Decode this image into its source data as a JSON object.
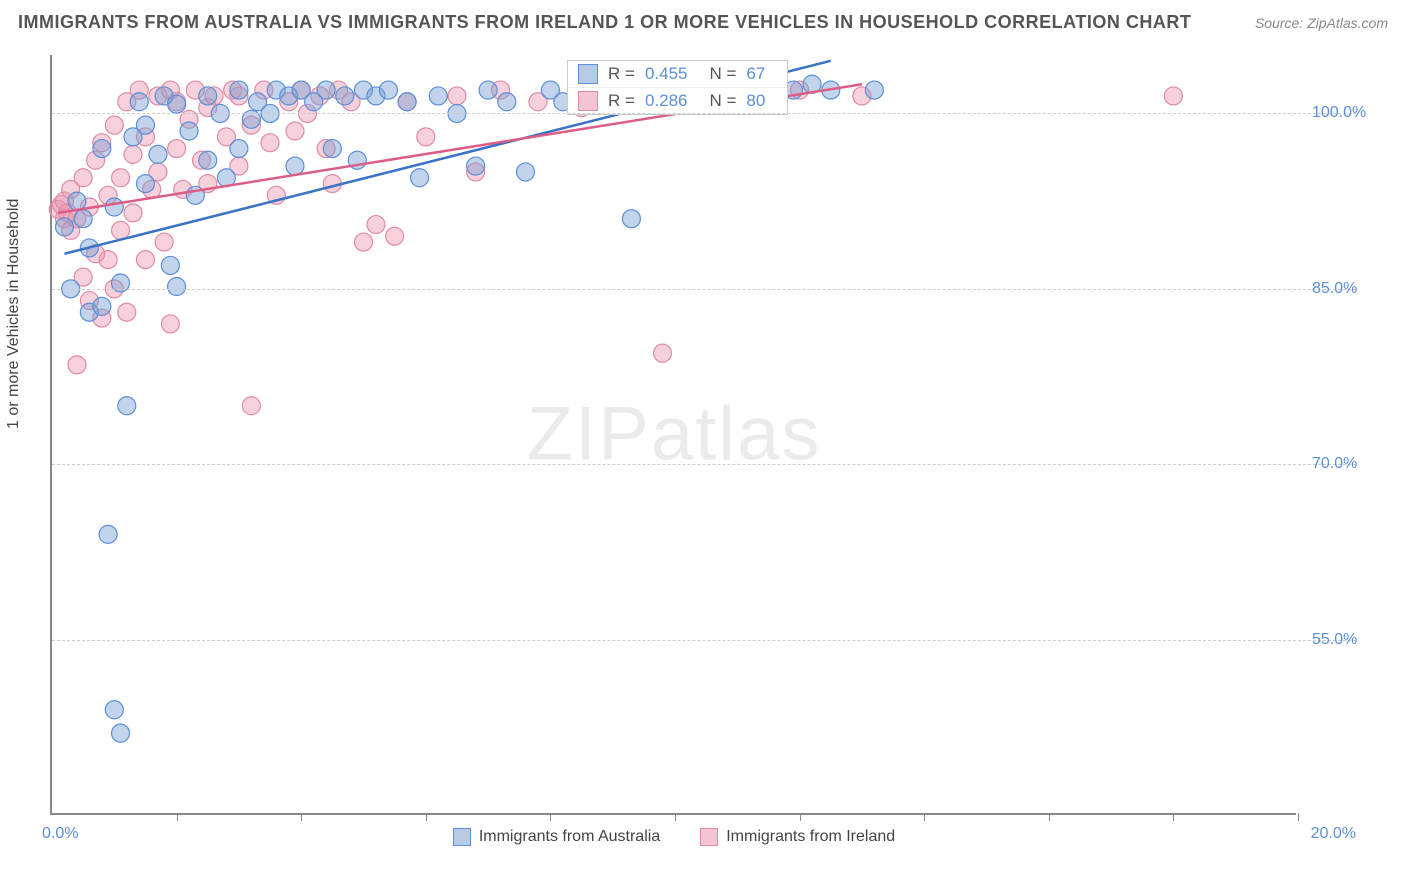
{
  "title": "IMMIGRANTS FROM AUSTRALIA VS IMMIGRANTS FROM IRELAND 1 OR MORE VEHICLES IN HOUSEHOLD CORRELATION CHART",
  "source": "Source: ZipAtlas.com",
  "watermark_bold": "ZIP",
  "watermark_thin": "atlas",
  "y_axis_label": "1 or more Vehicles in Household",
  "chart": {
    "type": "scatter",
    "xlim": [
      0,
      20
    ],
    "ylim": [
      40,
      105
    ],
    "x_ticks": [
      0,
      2,
      4,
      6,
      8,
      10,
      12,
      14,
      16,
      18,
      20
    ],
    "y_gridlines": [
      55.0,
      70.0,
      85.0,
      100.0
    ],
    "y_tick_labels": [
      "55.0%",
      "70.0%",
      "85.0%",
      "100.0%"
    ],
    "x_min_label": "0.0%",
    "x_max_label": "20.0%",
    "background_color": "#ffffff",
    "grid_color": "#cccccc",
    "axis_color": "#888888",
    "series": [
      {
        "name": "Immigrants from Australia",
        "marker_color": "rgba(120,160,210,0.45)",
        "marker_stroke": "#5b8fd6",
        "line_color": "#3a72c4",
        "marker_radius": 9,
        "R": "0.455",
        "N": "67",
        "trend": {
          "x1": 0.2,
          "y1": 88.0,
          "x2": 12.5,
          "y2": 104.5
        },
        "points": [
          [
            0.2,
            90.3
          ],
          [
            0.3,
            85.0
          ],
          [
            0.4,
            92.5
          ],
          [
            0.5,
            91.0
          ],
          [
            0.6,
            83.0
          ],
          [
            0.6,
            88.5
          ],
          [
            0.8,
            97.0
          ],
          [
            0.8,
            83.5
          ],
          [
            0.9,
            64.0
          ],
          [
            1.0,
            92.0
          ],
          [
            1.0,
            49.0
          ],
          [
            1.1,
            47.0
          ],
          [
            1.1,
            85.5
          ],
          [
            1.2,
            75.0
          ],
          [
            1.3,
            98.0
          ],
          [
            1.4,
            101.0
          ],
          [
            1.5,
            99.0
          ],
          [
            1.5,
            94.0
          ],
          [
            1.7,
            96.5
          ],
          [
            1.8,
            101.5
          ],
          [
            1.9,
            87.0
          ],
          [
            2.0,
            85.2
          ],
          [
            2.0,
            100.8
          ],
          [
            2.2,
            98.5
          ],
          [
            2.3,
            93.0
          ],
          [
            2.5,
            101.5
          ],
          [
            2.5,
            96.0
          ],
          [
            2.7,
            100.0
          ],
          [
            2.8,
            94.5
          ],
          [
            3.0,
            102.0
          ],
          [
            3.0,
            97.0
          ],
          [
            3.2,
            99.5
          ],
          [
            3.3,
            101.0
          ],
          [
            3.5,
            100.0
          ],
          [
            3.6,
            102.0
          ],
          [
            3.8,
            101.5
          ],
          [
            3.9,
            95.5
          ],
          [
            4.0,
            102.0
          ],
          [
            4.2,
            101.0
          ],
          [
            4.4,
            102.0
          ],
          [
            4.5,
            97.0
          ],
          [
            4.7,
            101.5
          ],
          [
            4.9,
            96.0
          ],
          [
            5.0,
            102.0
          ],
          [
            5.2,
            101.5
          ],
          [
            5.4,
            102.0
          ],
          [
            5.7,
            101.0
          ],
          [
            5.9,
            94.5
          ],
          [
            6.2,
            101.5
          ],
          [
            6.5,
            100.0
          ],
          [
            6.8,
            95.5
          ],
          [
            7.0,
            102.0
          ],
          [
            7.3,
            101.0
          ],
          [
            7.6,
            95.0
          ],
          [
            8.0,
            102.0
          ],
          [
            8.2,
            101.0
          ],
          [
            8.8,
            101.5
          ],
          [
            9.2,
            102.0
          ],
          [
            9.3,
            91.0
          ],
          [
            10.3,
            101.0
          ],
          [
            10.8,
            101.5
          ],
          [
            11.3,
            103.0
          ],
          [
            11.6,
            101.5
          ],
          [
            11.9,
            102.0
          ],
          [
            12.2,
            102.5
          ],
          [
            12.5,
            102.0
          ],
          [
            13.2,
            102.0
          ]
        ]
      },
      {
        "name": "Immigrants from Ireland",
        "marker_color": "rgba(235,150,175,0.45)",
        "marker_stroke": "#e08ba5",
        "line_color": "#dc5d86",
        "marker_radius": 9,
        "R": "0.286",
        "N": "80",
        "trend": {
          "x1": 0.1,
          "y1": 91.5,
          "x2": 13.0,
          "y2": 102.5
        },
        "points": [
          [
            0.1,
            91.8
          ],
          [
            0.15,
            92.2
          ],
          [
            0.2,
            91.0
          ],
          [
            0.2,
            92.5
          ],
          [
            0.25,
            91.5
          ],
          [
            0.3,
            90.0
          ],
          [
            0.3,
            93.5
          ],
          [
            0.4,
            78.5
          ],
          [
            0.4,
            91.0
          ],
          [
            0.5,
            94.5
          ],
          [
            0.5,
            86.0
          ],
          [
            0.6,
            92.0
          ],
          [
            0.6,
            84.0
          ],
          [
            0.7,
            96.0
          ],
          [
            0.7,
            88.0
          ],
          [
            0.8,
            82.5
          ],
          [
            0.8,
            97.5
          ],
          [
            0.9,
            93.0
          ],
          [
            0.9,
            87.5
          ],
          [
            1.0,
            99.0
          ],
          [
            1.0,
            85.0
          ],
          [
            1.1,
            94.5
          ],
          [
            1.1,
            90.0
          ],
          [
            1.2,
            101.0
          ],
          [
            1.2,
            83.0
          ],
          [
            1.3,
            96.5
          ],
          [
            1.3,
            91.5
          ],
          [
            1.4,
            102.0
          ],
          [
            1.5,
            87.5
          ],
          [
            1.5,
            98.0
          ],
          [
            1.6,
            93.5
          ],
          [
            1.7,
            101.5
          ],
          [
            1.7,
            95.0
          ],
          [
            1.8,
            89.0
          ],
          [
            1.9,
            102.0
          ],
          [
            1.9,
            82.0
          ],
          [
            2.0,
            97.0
          ],
          [
            2.0,
            101.0
          ],
          [
            2.1,
            93.5
          ],
          [
            2.2,
            99.5
          ],
          [
            2.3,
            102.0
          ],
          [
            2.4,
            96.0
          ],
          [
            2.5,
            100.5
          ],
          [
            2.5,
            94.0
          ],
          [
            2.6,
            101.5
          ],
          [
            2.8,
            98.0
          ],
          [
            2.9,
            102.0
          ],
          [
            3.0,
            95.5
          ],
          [
            3.0,
            101.5
          ],
          [
            3.2,
            75.0
          ],
          [
            3.2,
            99.0
          ],
          [
            3.4,
            102.0
          ],
          [
            3.5,
            97.5
          ],
          [
            3.6,
            93.0
          ],
          [
            3.8,
            101.0
          ],
          [
            3.9,
            98.5
          ],
          [
            4.0,
            102.0
          ],
          [
            4.1,
            100.0
          ],
          [
            4.3,
            101.5
          ],
          [
            4.4,
            97.0
          ],
          [
            4.5,
            94.0
          ],
          [
            4.6,
            102.0
          ],
          [
            4.8,
            101.0
          ],
          [
            5.0,
            89.0
          ],
          [
            5.2,
            90.5
          ],
          [
            5.5,
            89.5
          ],
          [
            5.7,
            101.0
          ],
          [
            6.0,
            98.0
          ],
          [
            6.5,
            101.5
          ],
          [
            6.8,
            95.0
          ],
          [
            7.2,
            102.0
          ],
          [
            7.8,
            101.0
          ],
          [
            8.5,
            100.5
          ],
          [
            9.0,
            101.5
          ],
          [
            9.8,
            79.5
          ],
          [
            10.5,
            102.0
          ],
          [
            11.2,
            101.0
          ],
          [
            12.0,
            102.0
          ],
          [
            13.0,
            101.5
          ],
          [
            18.0,
            101.5
          ]
        ]
      }
    ],
    "legend_items": [
      {
        "label": "Immigrants from Australia",
        "fill": "rgba(120,160,210,0.55)",
        "stroke": "#5b8fd6"
      },
      {
        "label": "Immigrants from Ireland",
        "fill": "rgba(235,150,175,0.55)",
        "stroke": "#e08ba5"
      }
    ]
  }
}
